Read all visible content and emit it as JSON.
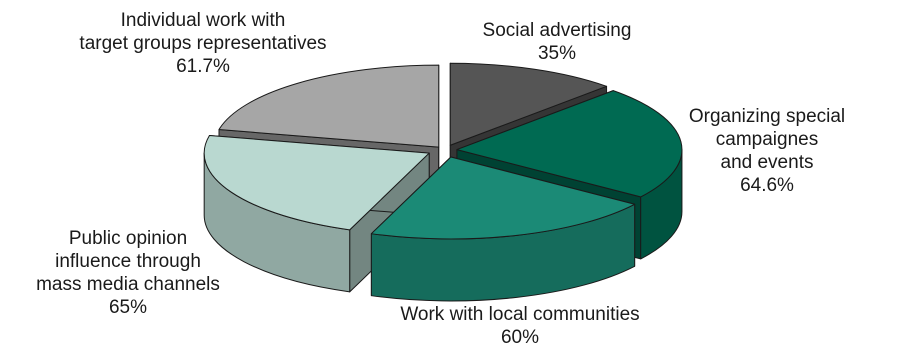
{
  "chart_data": {
    "type": "pie",
    "style": "3d-exploded",
    "title": "",
    "unit": "%",
    "slices": [
      {
        "label_lines": [
          "Social advertising"
        ],
        "value": 35,
        "value_label": "35%",
        "color": "#555555"
      },
      {
        "label_lines": [
          "Organizing special",
          "campaignes",
          "and events"
        ],
        "value": 64.6,
        "value_label": "64.6%",
        "color": "#006a52"
      },
      {
        "label_lines": [
          "Work with local communities"
        ],
        "value": 60,
        "value_label": "60%",
        "color": "#1b8a76"
      },
      {
        "label_lines": [
          "Public opinion",
          "influence through",
          "mass media channels"
        ],
        "value": 65,
        "value_label": "65%",
        "color": "#b9d8d0"
      },
      {
        "label_lines": [
          "Individual work with",
          "target groups representatives"
        ],
        "value": 61.7,
        "value_label": "61.7%",
        "color": "#a6a6a6"
      }
    ]
  }
}
